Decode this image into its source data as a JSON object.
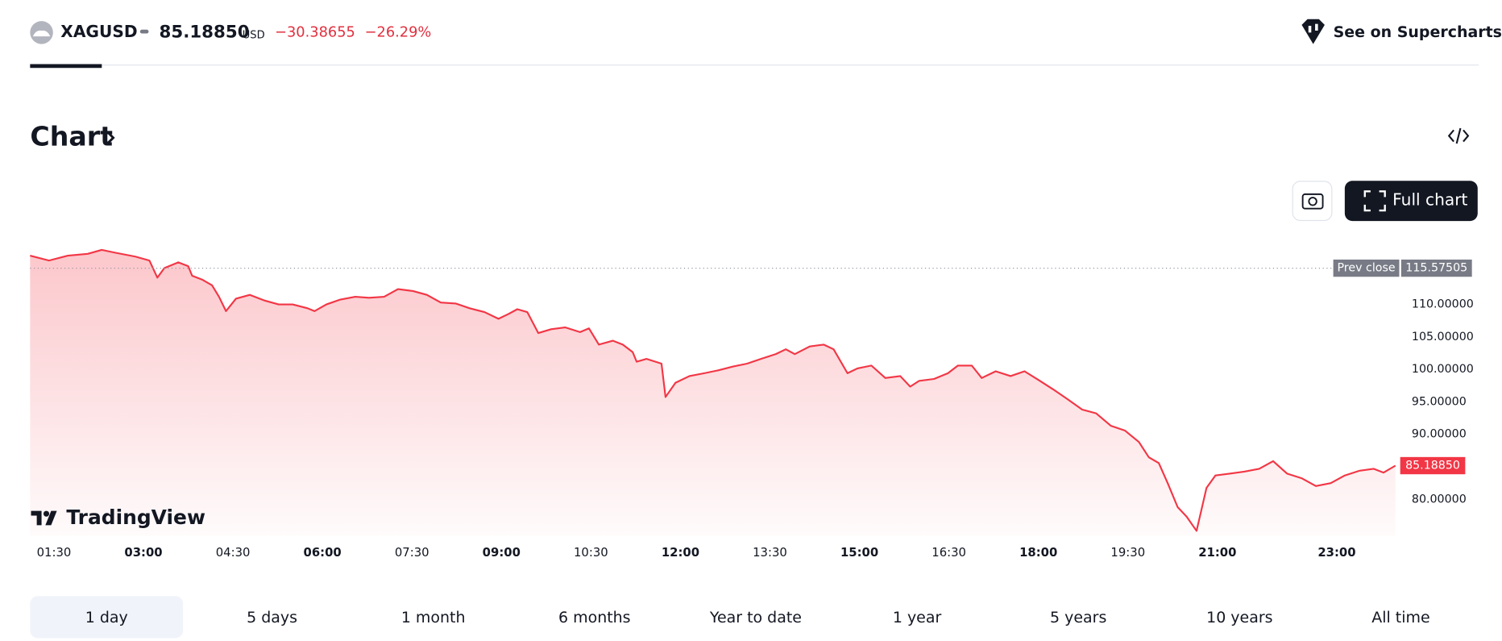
{
  "header": {
    "symbol": "XAGUSD",
    "price": "85.18850",
    "currency": "USD",
    "change": "−30.38655",
    "change_percent": "−26.29%",
    "supercharts_link": "See on Supercharts"
  },
  "section": {
    "title": "Chart",
    "full_chart_button": "Full chart"
  },
  "logo": "TradingView",
  "range_tabs": [
    "1 day",
    "5 days",
    "1 month",
    "6 months",
    "Year to date",
    "1 year",
    "5 years",
    "10 years",
    "All time"
  ],
  "chart_data": {
    "type": "area",
    "color": "#f23645",
    "x": [
      "01:06",
      "01:25",
      "01:44",
      "02:04",
      "02:18",
      "02:32",
      "02:52",
      "03:06",
      "03:14",
      "03:21",
      "03:35",
      "03:45",
      "03:49",
      "03:59",
      "04:09",
      "04:16",
      "04:23",
      "04:33",
      "04:47",
      "05:02",
      "05:16",
      "05:30",
      "05:45",
      "05:52",
      "06:04",
      "06:18",
      "06:33",
      "06:47",
      "07:02",
      "07:16",
      "07:31",
      "07:45",
      "07:59",
      "08:14",
      "08:28",
      "08:43",
      "08:57",
      "09:07",
      "09:16",
      "09:26",
      "09:37",
      "09:50",
      "10:04",
      "10:19",
      "10:28",
      "10:38",
      "10:52",
      "11:02",
      "11:12",
      "11:16",
      "11:26",
      "11:41",
      "11:45",
      "11:55",
      "12:09",
      "12:24",
      "12:38",
      "12:53",
      "13:07",
      "13:21",
      "13:36",
      "13:46",
      "13:55",
      "14:10",
      "14:24",
      "14:34",
      "14:48",
      "14:58",
      "15:12",
      "15:26",
      "15:41",
      "15:51",
      "16:00",
      "16:15",
      "16:29",
      "16:39",
      "16:53",
      "17:03",
      "17:17",
      "17:32",
      "17:46",
      "18:00",
      "18:15",
      "18:29",
      "18:44",
      "18:58",
      "19:13",
      "19:27",
      "19:41",
      "19:51",
      "20:01",
      "20:10",
      "20:20",
      "20:29",
      "20:39",
      "20:49",
      "20:58",
      "21:13",
      "21:27",
      "21:42",
      "21:56",
      "22:10",
      "22:25",
      "22:39",
      "22:54",
      "23:08",
      "23:23",
      "23:37",
      "23:47",
      "23:59"
    ],
    "values": [
      117.5,
      116.76,
      117.5,
      117.79,
      118.38,
      117.94,
      117.35,
      116.76,
      114.12,
      115.59,
      116.47,
      115.88,
      114.41,
      113.82,
      112.94,
      111.18,
      108.97,
      110.88,
      111.47,
      110.59,
      110,
      110,
      109.41,
      108.97,
      110,
      110.74,
      111.18,
      111.03,
      111.18,
      112.35,
      112.06,
      111.47,
      110.29,
      110.15,
      109.41,
      108.82,
      107.79,
      108.53,
      109.26,
      108.82,
      105.59,
      106.18,
      106.47,
      105.74,
      106.32,
      103.82,
      104.41,
      103.82,
      102.65,
      101.18,
      101.62,
      100.88,
      95.74,
      97.94,
      98.97,
      99.41,
      99.85,
      100.44,
      100.88,
      101.62,
      102.35,
      103.09,
      102.35,
      103.53,
      103.82,
      103.09,
      99.41,
      100.15,
      100.59,
      98.68,
      98.97,
      97.35,
      98.24,
      98.53,
      99.41,
      100.59,
      100.59,
      98.68,
      99.71,
      98.97,
      99.71,
      98.38,
      96.91,
      95.44,
      93.82,
      93.24,
      91.32,
      90.59,
      88.82,
      86.47,
      85.59,
      82.5,
      78.82,
      77.35,
      75.15,
      81.76,
      83.68,
      83.97,
      84.26,
      84.71,
      85.88,
      83.97,
      83.24,
      82.06,
      82.5,
      83.68,
      84.41,
      84.71,
      84.12,
      85.1885
    ],
    "xlim": [
      "01:06",
      "23:59"
    ],
    "xticks": [
      "01:30",
      "03:00",
      "04:30",
      "06:00",
      "07:30",
      "09:00",
      "10:30",
      "12:00",
      "13:30",
      "15:00",
      "16:30",
      "18:00",
      "19:30",
      "21:00",
      "23:00"
    ],
    "bold_xticks": [
      false,
      true,
      false,
      true,
      false,
      true,
      false,
      true,
      false,
      true,
      false,
      true,
      false,
      true,
      true
    ],
    "ylim": [
      74.4,
      119.3
    ],
    "yticks": [
      {
        "value": 80,
        "label": "80.00000"
      },
      {
        "value": 90,
        "label": "90.00000"
      },
      {
        "value": 95,
        "label": "95.00000"
      },
      {
        "value": 100,
        "label": "100.00000"
      },
      {
        "value": 105,
        "label": "105.00000"
      },
      {
        "value": 110,
        "label": "110.00000"
      }
    ],
    "prev_close_title": "Prev close",
    "prev_close": 115.57505
  }
}
